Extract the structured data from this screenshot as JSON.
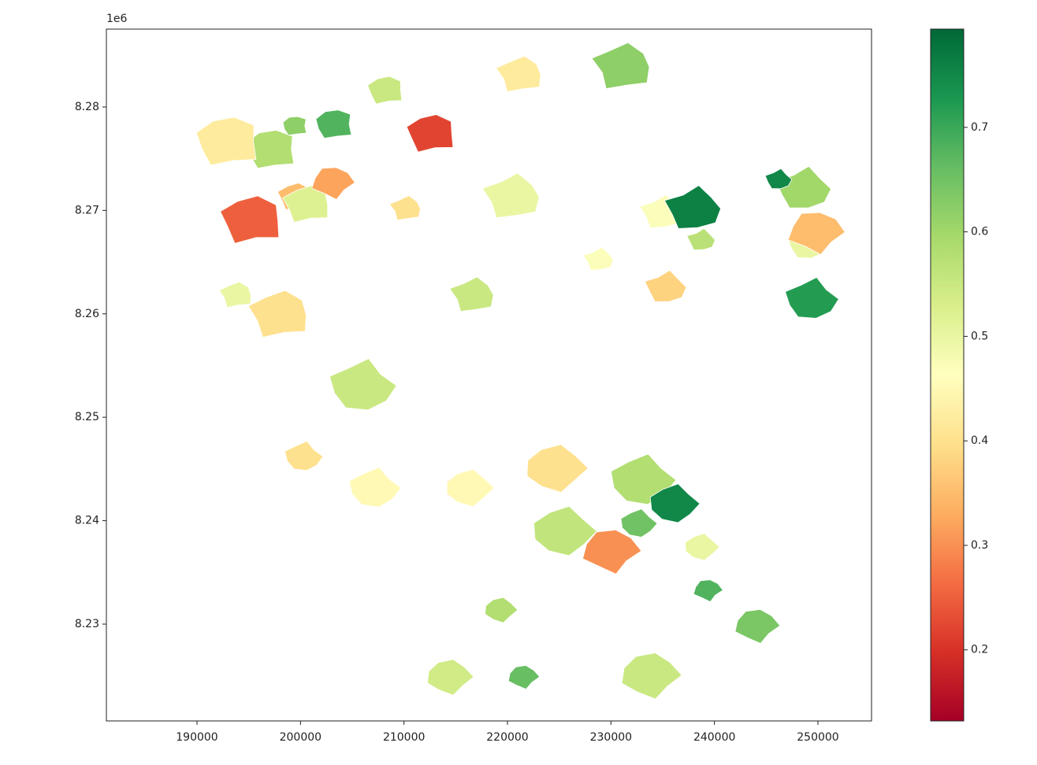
{
  "chart_data": {
    "type": "map",
    "x": [
      199518,
      203325,
      197233,
      193046,
      208274,
      212690,
      195330,
      199518,
      200660,
      197994,
      193807,
      221217,
      231116,
      210181,
      216654,
      220456,
      228831,
      234922,
      237969,
      238730,
      235303,
      248629,
      246193,
      249010,
      249391,
      205990,
      200280,
      207132,
      233020,
      232639,
      236065,
      225406,
      238730,
      216273,
      224645,
      219314,
      214366,
      233782,
      221521,
      244060,
      229973,
      239339,
      203096,
      249772
    ],
    "y": [
      8.27817,
      8.27833,
      8.27589,
      8.27665,
      8.2816,
      8.27741,
      8.26904,
      8.27132,
      8.27056,
      8.25991,
      8.26181,
      8.28312,
      8.28388,
      8.27018,
      8.26181,
      8.27132,
      8.26524,
      8.2698,
      8.27018,
      8.26714,
      8.26257,
      8.27209,
      8.273,
      8.26676,
      8.26143,
      8.25306,
      8.24621,
      8.24317,
      8.24393,
      8.23974,
      8.24165,
      8.23898,
      8.23746,
      8.24317,
      8.24507,
      8.23137,
      8.2249,
      8.22505,
      8.2249,
      8.22985,
      8.23708,
      8.23328,
      8.2727,
      8.2679
    ],
    "values": [
      0.62,
      0.68,
      0.58,
      0.42,
      0.55,
      0.22,
      0.25,
      0.35,
      0.52,
      0.4,
      0.5,
      0.42,
      0.62,
      0.4,
      0.55,
      0.5,
      0.47,
      0.47,
      0.76,
      0.57,
      0.38,
      0.6,
      0.75,
      0.5,
      0.72,
      0.55,
      0.4,
      0.45,
      0.58,
      0.65,
      0.75,
      0.56,
      0.5,
      0.45,
      0.4,
      0.58,
      0.54,
      0.55,
      0.66,
      0.64,
      0.3,
      0.68,
      0.32,
      0.35
    ],
    "xlim": [
      181243,
      255178
    ],
    "ylim": [
      8.22064,
      8.28753
    ],
    "xticks": [
      190000,
      200000,
      210000,
      220000,
      230000,
      240000,
      250000
    ],
    "yticks": [
      8.23,
      8.24,
      8.25,
      8.26,
      8.27,
      8.28
    ],
    "y_offset_label": "1e6",
    "colorbar": {
      "lim": [
        0.132,
        0.794
      ],
      "ticks": [
        0.2,
        0.3,
        0.4,
        0.5,
        0.6,
        0.7
      ],
      "colormap": [
        "#a50026",
        "#d73027",
        "#f46d43",
        "#fdae61",
        "#fee08b",
        "#ffffbf",
        "#d9ef8b",
        "#a6d96a",
        "#66bd63",
        "#1a9850",
        "#006837"
      ]
    }
  }
}
